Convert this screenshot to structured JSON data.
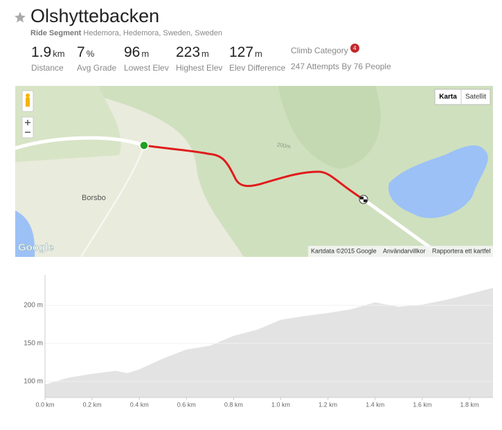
{
  "header": {
    "title": "Olshyttebacken",
    "segment_type": "Ride Segment",
    "location": "Hedemora, Hedemora, Sweden, Sweden"
  },
  "stats": [
    {
      "value": 1.9,
      "unit": "km",
      "label": "Distance"
    },
    {
      "value": 7,
      "unit": "%",
      "label": "Avg Grade"
    },
    {
      "value": 96,
      "unit": "m",
      "label": "Lowest Elev"
    },
    {
      "value": 223,
      "unit": "m",
      "label": "Highest Elev"
    },
    {
      "value": 127,
      "unit": "m",
      "label": "Elev Difference"
    }
  ],
  "climb": {
    "label": "Climb Category",
    "category": 4,
    "attempts": "247 Attempts By 76 People"
  },
  "map": {
    "buttons": [
      "Karta",
      "Satellit"
    ],
    "place": "Borsbo",
    "contour": "200m",
    "logo": "Google",
    "attribution": "Kartdata ©2015 Google",
    "terms": "Användarvillkor",
    "report": "Rapportera ett kartfel"
  },
  "chart_data": {
    "type": "area",
    "x": [
      0,
      0.1,
      0.2,
      0.3,
      0.35,
      0.4,
      0.5,
      0.6,
      0.7,
      0.8,
      0.9,
      1.0,
      1.1,
      1.2,
      1.3,
      1.4,
      1.5,
      1.6,
      1.7,
      1.8,
      1.9
    ],
    "values": [
      96,
      105,
      110,
      114,
      111,
      116,
      130,
      142,
      147,
      160,
      168,
      181,
      186,
      190,
      195,
      204,
      198,
      201,
      207,
      215,
      223
    ],
    "color": "#e3e3e3",
    "xlim": [
      0,
      1.9
    ],
    "ylim": [
      79,
      240
    ],
    "xticks": [
      {
        "value": 0,
        "label": "0.0 km"
      },
      {
        "value": 0.2,
        "label": "0.2 km"
      },
      {
        "value": 0.4,
        "label": "0.4 km"
      },
      {
        "value": 0.6,
        "label": "0.6 km"
      },
      {
        "value": 0.8,
        "label": "0.8 km"
      },
      {
        "value": 1.0,
        "label": "1.0 km"
      },
      {
        "value": 1.2,
        "label": "1.2 km"
      },
      {
        "value": 1.4,
        "label": "1.4 km"
      },
      {
        "value": 1.6,
        "label": "1.6 km"
      },
      {
        "value": 1.8,
        "label": "1.8 km"
      }
    ],
    "yticks": [
      {
        "value": 100,
        "label": "100 m"
      },
      {
        "value": 150,
        "label": "150 m"
      },
      {
        "value": 200,
        "label": "200 m"
      }
    ],
    "grid": true
  }
}
